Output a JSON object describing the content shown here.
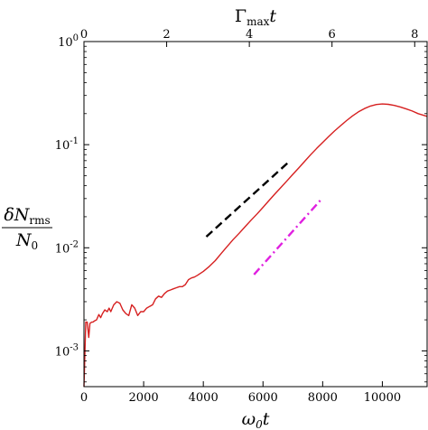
{
  "chart_data": {
    "type": "line",
    "title": "",
    "y_scale": "log",
    "xlabel": {
      "main": "ω",
      "sub": "0",
      "tail": "t"
    },
    "ylabel": {
      "num_main": "δN",
      "num_sub": "rms",
      "den_main": "N",
      "den_sub": "0"
    },
    "top_xlabel": {
      "main": "Γ",
      "sub": "max",
      "tail": "t"
    },
    "xlim": [
      0,
      11500
    ],
    "ylim": [
      0.00045,
      1
    ],
    "top_xlim": [
      0,
      8.3
    ],
    "x_ticks": [
      0,
      2000,
      4000,
      6000,
      8000,
      10000
    ],
    "x_tick_labels": [
      "0",
      "2000",
      "4000",
      "6000",
      "8000",
      "10000"
    ],
    "top_x_ticks": [
      0,
      2,
      4,
      6,
      8
    ],
    "top_x_tick_labels": [
      "0",
      "2",
      "4",
      "6",
      "8"
    ],
    "y_ticks": [
      0.001,
      0.01,
      0.1,
      1
    ],
    "y_tick_labels": [
      {
        "base": "10",
        "exp": "-3"
      },
      {
        "base": "10",
        "exp": "-2"
      },
      {
        "base": "10",
        "exp": "-1"
      },
      {
        "base": "10",
        "exp": "0"
      }
    ],
    "grid": false,
    "legend": "none",
    "series": [
      {
        "color": "#d62020",
        "style": "solid",
        "x": [
          0,
          60,
          110,
          160,
          200,
          260,
          300,
          350,
          420,
          500,
          560,
          620,
          700,
          780,
          840,
          900,
          1000,
          1100,
          1200,
          1300,
          1400,
          1500,
          1600,
          1700,
          1800,
          1900,
          2000,
          2100,
          2200,
          2300,
          2400,
          2500,
          2600,
          2700,
          2800,
          2900,
          3000,
          3100,
          3200,
          3300,
          3400,
          3500,
          3600,
          3700,
          3800,
          4000,
          4200,
          4400,
          4600,
          4800,
          5000,
          5200,
          5400,
          5600,
          5800,
          6000,
          6200,
          6400,
          6600,
          6800,
          7000,
          7200,
          7400,
          7600,
          7800,
          8000,
          8200,
          8400,
          8600,
          8800,
          9000,
          9200,
          9400,
          9600,
          9800,
          10000,
          10200,
          10400,
          10600,
          10800,
          11000,
          11200,
          11500
        ],
        "y": [
          0.00045,
          0.0019,
          0.0019,
          0.00135,
          0.00185,
          0.0019,
          0.0019,
          0.00195,
          0.002,
          0.00225,
          0.0021,
          0.0023,
          0.0025,
          0.0024,
          0.0026,
          0.0024,
          0.0028,
          0.003,
          0.0029,
          0.0025,
          0.0023,
          0.0022,
          0.0028,
          0.0026,
          0.0022,
          0.0024,
          0.0024,
          0.0026,
          0.0027,
          0.0028,
          0.0032,
          0.0034,
          0.0033,
          0.0036,
          0.0038,
          0.0039,
          0.004,
          0.0041,
          0.0042,
          0.0042,
          0.0044,
          0.0049,
          0.0051,
          0.0052,
          0.0054,
          0.0059,
          0.0066,
          0.0075,
          0.0088,
          0.0103,
          0.012,
          0.0138,
          0.016,
          0.0185,
          0.0213,
          0.0247,
          0.0287,
          0.0333,
          0.0385,
          0.0445,
          0.0515,
          0.0595,
          0.069,
          0.08,
          0.092,
          0.105,
          0.12,
          0.136,
          0.153,
          0.171,
          0.19,
          0.208,
          0.224,
          0.237,
          0.245,
          0.248,
          0.246,
          0.24,
          0.232,
          0.222,
          0.212,
          0.2,
          0.188
        ]
      },
      {
        "color": "#000000",
        "style": "dashed",
        "x": [
          4100,
          6900
        ],
        "y": [
          0.0128,
          0.0695
        ]
      },
      {
        "color": "#e020e0",
        "style": "dashdot",
        "x": [
          5700,
          8000
        ],
        "y": [
          0.0055,
          0.0305
        ]
      }
    ]
  }
}
